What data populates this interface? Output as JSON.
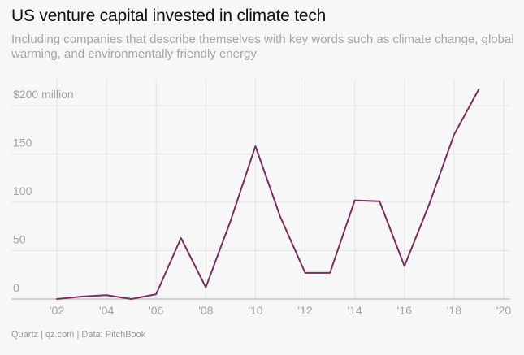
{
  "header": {
    "title": "US venture capital invested in climate tech",
    "subtitle": "Including companies that describe themselves with key words such as climate change, global warming, and environmentally friendly energy"
  },
  "footer": {
    "source": "Quartz | qz.com | Data: PitchBook"
  },
  "colors": {
    "line": "#7b2d5e",
    "grid": "#e3e3e3",
    "axis": "#bbbbbb"
  },
  "chart_data": {
    "type": "line",
    "title": "US venture capital invested in climate tech",
    "xlabel": "",
    "ylabel": "$ million",
    "xlim": [
      2001,
      2020
    ],
    "ylim": [
      0,
      220
    ],
    "y_ticks": [
      {
        "value": 0,
        "label": "0"
      },
      {
        "value": 50,
        "label": "50"
      },
      {
        "value": 100,
        "label": "100"
      },
      {
        "value": 150,
        "label": "150"
      },
      {
        "value": 200,
        "label": "$200 million"
      }
    ],
    "x_ticks": [
      {
        "value": 2002,
        "label": "'02"
      },
      {
        "value": 2004,
        "label": "'04"
      },
      {
        "value": 2006,
        "label": "'06"
      },
      {
        "value": 2008,
        "label": "'08"
      },
      {
        "value": 2010,
        "label": "'10"
      },
      {
        "value": 2012,
        "label": "'12"
      },
      {
        "value": 2014,
        "label": "'14"
      },
      {
        "value": 2016,
        "label": "'16"
      },
      {
        "value": 2018,
        "label": "'18"
      },
      {
        "value": 2020,
        "label": "'20"
      }
    ],
    "series": [
      {
        "name": "Venture capital invested",
        "x": [
          2002,
          2003,
          2004,
          2005,
          2006,
          2007,
          2008,
          2009,
          2010,
          2011,
          2012,
          2013,
          2014,
          2015,
          2016,
          2017,
          2018,
          2019
        ],
        "values": [
          0,
          2.5,
          4,
          0,
          5,
          63,
          12,
          81,
          158,
          85,
          27,
          27,
          102,
          101,
          34,
          98,
          170,
          217
        ]
      }
    ]
  }
}
